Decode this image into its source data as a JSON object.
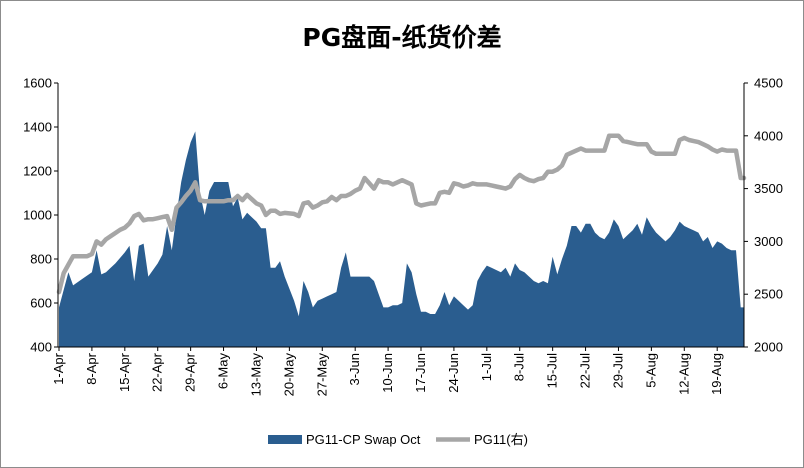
{
  "chart_data": {
    "type": "area+line",
    "title": "PG盘面-纸货价差",
    "left_axis": {
      "min": 400,
      "max": 1600,
      "ticks": [
        400,
        600,
        800,
        1000,
        1200,
        1400,
        1600
      ]
    },
    "right_axis": {
      "min": 2000,
      "max": 4500,
      "ticks": [
        2000,
        2500,
        3000,
        3500,
        4000,
        4500
      ]
    },
    "x_labels": [
      "1-Apr",
      "8-Apr",
      "15-Apr",
      "22-Apr",
      "29-Apr",
      "6-May",
      "13-May",
      "20-May",
      "27-May",
      "3-Jun",
      "10-Jun",
      "17-Jun",
      "24-Jun",
      "1-Jul",
      "8-Jul",
      "15-Jul",
      "22-Jul",
      "29-Jul",
      "5-Aug",
      "12-Aug",
      "19-Aug"
    ],
    "x_range": [
      0,
      144
    ],
    "series": [
      {
        "name": "PG11-CP Swap Oct",
        "type": "area",
        "axis": "left",
        "color": "#2a5d8f",
        "points": [
          [
            0,
            580
          ],
          [
            2,
            740
          ],
          [
            3,
            680
          ],
          [
            5,
            710
          ],
          [
            7,
            740
          ],
          [
            8,
            840
          ],
          [
            9,
            730
          ],
          [
            10,
            740
          ],
          [
            11,
            760
          ],
          [
            12,
            780
          ],
          [
            14,
            830
          ],
          [
            15,
            860
          ],
          [
            16,
            700
          ],
          [
            17,
            860
          ],
          [
            18,
            870
          ],
          [
            19,
            720
          ],
          [
            20,
            750
          ],
          [
            21,
            780
          ],
          [
            22,
            820
          ],
          [
            23,
            950
          ],
          [
            24,
            840
          ],
          [
            25,
            1000
          ],
          [
            26,
            1150
          ],
          [
            27,
            1250
          ],
          [
            28,
            1330
          ],
          [
            29,
            1380
          ],
          [
            30,
            1100
          ],
          [
            31,
            1000
          ],
          [
            32,
            1110
          ],
          [
            33,
            1150
          ],
          [
            34,
            1150
          ],
          [
            35,
            1150
          ],
          [
            36,
            1150
          ],
          [
            37,
            1040
          ],
          [
            38,
            1080
          ],
          [
            39,
            980
          ],
          [
            40,
            1010
          ],
          [
            41,
            990
          ],
          [
            42,
            970
          ],
          [
            43,
            940
          ],
          [
            44,
            940
          ],
          [
            45,
            760
          ],
          [
            46,
            760
          ],
          [
            47,
            790
          ],
          [
            48,
            720
          ],
          [
            50,
            610
          ],
          [
            51,
            540
          ],
          [
            52,
            700
          ],
          [
            53,
            650
          ],
          [
            54,
            580
          ],
          [
            55,
            610
          ],
          [
            56,
            620
          ],
          [
            57,
            630
          ],
          [
            58,
            640
          ],
          [
            59,
            650
          ],
          [
            60,
            760
          ],
          [
            61,
            830
          ],
          [
            62,
            720
          ],
          [
            63,
            720
          ],
          [
            64,
            720
          ],
          [
            65,
            720
          ],
          [
            66,
            720
          ],
          [
            67,
            700
          ],
          [
            68,
            640
          ],
          [
            69,
            580
          ],
          [
            70,
            580
          ],
          [
            71,
            590
          ],
          [
            72,
            590
          ],
          [
            73,
            600
          ],
          [
            74,
            780
          ],
          [
            75,
            740
          ],
          [
            76,
            640
          ],
          [
            77,
            560
          ],
          [
            78,
            560
          ],
          [
            79,
            550
          ],
          [
            80,
            550
          ],
          [
            81,
            590
          ],
          [
            82,
            650
          ],
          [
            83,
            590
          ],
          [
            84,
            630
          ],
          [
            85,
            610
          ],
          [
            86,
            590
          ],
          [
            87,
            570
          ],
          [
            88,
            590
          ],
          [
            89,
            700
          ],
          [
            90,
            740
          ],
          [
            91,
            770
          ],
          [
            92,
            760
          ],
          [
            93,
            750
          ],
          [
            94,
            740
          ],
          [
            95,
            760
          ],
          [
            96,
            720
          ],
          [
            97,
            780
          ],
          [
            98,
            750
          ],
          [
            99,
            740
          ],
          [
            100,
            720
          ],
          [
            101,
            700
          ],
          [
            102,
            690
          ],
          [
            103,
            700
          ],
          [
            104,
            690
          ],
          [
            105,
            810
          ],
          [
            106,
            730
          ],
          [
            107,
            800
          ],
          [
            108,
            860
          ],
          [
            109,
            950
          ],
          [
            110,
            950
          ],
          [
            111,
            920
          ],
          [
            112,
            960
          ],
          [
            113,
            960
          ],
          [
            114,
            920
          ],
          [
            115,
            900
          ],
          [
            116,
            890
          ],
          [
            117,
            920
          ],
          [
            118,
            980
          ],
          [
            119,
            950
          ],
          [
            120,
            890
          ],
          [
            121,
            910
          ],
          [
            122,
            930
          ],
          [
            123,
            960
          ],
          [
            124,
            910
          ],
          [
            125,
            990
          ],
          [
            126,
            950
          ],
          [
            127,
            920
          ],
          [
            128,
            900
          ],
          [
            129,
            880
          ],
          [
            130,
            900
          ],
          [
            131,
            930
          ],
          [
            132,
            970
          ],
          [
            133,
            950
          ],
          [
            134,
            940
          ],
          [
            135,
            930
          ],
          [
            136,
            920
          ],
          [
            137,
            880
          ],
          [
            138,
            900
          ],
          [
            139,
            850
          ],
          [
            140,
            880
          ],
          [
            141,
            870
          ],
          [
            142,
            850
          ],
          [
            143,
            840
          ],
          [
            144,
            840
          ],
          [
            145,
            580
          ],
          [
            146,
            580
          ]
        ]
      },
      {
        "name": "PG11(右)",
        "type": "line",
        "axis": "right",
        "color": "#a6a6a6",
        "points": [
          [
            0,
            2520
          ],
          [
            1,
            2700
          ],
          [
            2,
            2780
          ],
          [
            3,
            2860
          ],
          [
            4,
            2860
          ],
          [
            5,
            2860
          ],
          [
            6,
            2860
          ],
          [
            7,
            2880
          ],
          [
            8,
            3000
          ],
          [
            9,
            2970
          ],
          [
            10,
            3020
          ],
          [
            11,
            3050
          ],
          [
            12,
            3080
          ],
          [
            13,
            3110
          ],
          [
            14,
            3130
          ],
          [
            15,
            3170
          ],
          [
            16,
            3240
          ],
          [
            17,
            3260
          ],
          [
            18,
            3200
          ],
          [
            19,
            3210
          ],
          [
            20,
            3210
          ],
          [
            21,
            3220
          ],
          [
            22,
            3230
          ],
          [
            23,
            3240
          ],
          [
            24,
            3110
          ],
          [
            25,
            3320
          ],
          [
            26,
            3370
          ],
          [
            27,
            3430
          ],
          [
            28,
            3480
          ],
          [
            29,
            3560
          ],
          [
            30,
            3390
          ],
          [
            31,
            3380
          ],
          [
            32,
            3380
          ],
          [
            33,
            3380
          ],
          [
            34,
            3380
          ],
          [
            35,
            3380
          ],
          [
            36,
            3390
          ],
          [
            37,
            3390
          ],
          [
            38,
            3430
          ],
          [
            39,
            3390
          ],
          [
            40,
            3440
          ],
          [
            41,
            3400
          ],
          [
            42,
            3360
          ],
          [
            43,
            3340
          ],
          [
            44,
            3250
          ],
          [
            45,
            3290
          ],
          [
            46,
            3290
          ],
          [
            47,
            3260
          ],
          [
            48,
            3270
          ],
          [
            50,
            3260
          ],
          [
            51,
            3240
          ],
          [
            52,
            3360
          ],
          [
            53,
            3370
          ],
          [
            54,
            3320
          ],
          [
            55,
            3340
          ],
          [
            56,
            3370
          ],
          [
            57,
            3380
          ],
          [
            58,
            3420
          ],
          [
            59,
            3390
          ],
          [
            60,
            3430
          ],
          [
            61,
            3430
          ],
          [
            62,
            3450
          ],
          [
            63,
            3480
          ],
          [
            64,
            3500
          ],
          [
            65,
            3600
          ],
          [
            66,
            3550
          ],
          [
            67,
            3500
          ],
          [
            68,
            3580
          ],
          [
            69,
            3560
          ],
          [
            70,
            3560
          ],
          [
            71,
            3540
          ],
          [
            72,
            3560
          ],
          [
            73,
            3580
          ],
          [
            74,
            3560
          ],
          [
            75,
            3540
          ],
          [
            76,
            3360
          ],
          [
            77,
            3340
          ],
          [
            78,
            3350
          ],
          [
            79,
            3360
          ],
          [
            80,
            3360
          ],
          [
            81,
            3460
          ],
          [
            82,
            3470
          ],
          [
            83,
            3460
          ],
          [
            84,
            3550
          ],
          [
            85,
            3540
          ],
          [
            86,
            3520
          ],
          [
            87,
            3530
          ],
          [
            88,
            3550
          ],
          [
            89,
            3540
          ],
          [
            90,
            3540
          ],
          [
            91,
            3540
          ],
          [
            92,
            3530
          ],
          [
            93,
            3520
          ],
          [
            94,
            3510
          ],
          [
            95,
            3500
          ],
          [
            96,
            3520
          ],
          [
            97,
            3590
          ],
          [
            98,
            3630
          ],
          [
            99,
            3600
          ],
          [
            100,
            3580
          ],
          [
            101,
            3570
          ],
          [
            102,
            3590
          ],
          [
            103,
            3600
          ],
          [
            104,
            3660
          ],
          [
            105,
            3660
          ],
          [
            106,
            3680
          ],
          [
            107,
            3720
          ],
          [
            108,
            3820
          ],
          [
            109,
            3840
          ],
          [
            110,
            3860
          ],
          [
            111,
            3880
          ],
          [
            112,
            3860
          ],
          [
            113,
            3860
          ],
          [
            114,
            3860
          ],
          [
            115,
            3860
          ],
          [
            116,
            3860
          ],
          [
            117,
            4000
          ],
          [
            118,
            4000
          ],
          [
            119,
            4000
          ],
          [
            120,
            3950
          ],
          [
            121,
            3940
          ],
          [
            122,
            3930
          ],
          [
            123,
            3920
          ],
          [
            124,
            3920
          ],
          [
            125,
            3920
          ],
          [
            126,
            3850
          ],
          [
            127,
            3830
          ],
          [
            128,
            3830
          ],
          [
            129,
            3830
          ],
          [
            130,
            3830
          ],
          [
            131,
            3830
          ],
          [
            132,
            3960
          ],
          [
            133,
            3980
          ],
          [
            134,
            3960
          ],
          [
            135,
            3950
          ],
          [
            136,
            3940
          ],
          [
            137,
            3920
          ],
          [
            138,
            3900
          ],
          [
            139,
            3870
          ],
          [
            140,
            3850
          ],
          [
            141,
            3870
          ],
          [
            142,
            3860
          ],
          [
            143,
            3860
          ],
          [
            144,
            3860
          ],
          [
            145,
            3600
          ],
          [
            146,
            3600
          ]
        ]
      }
    ],
    "legend_position": "bottom",
    "grid": false
  }
}
